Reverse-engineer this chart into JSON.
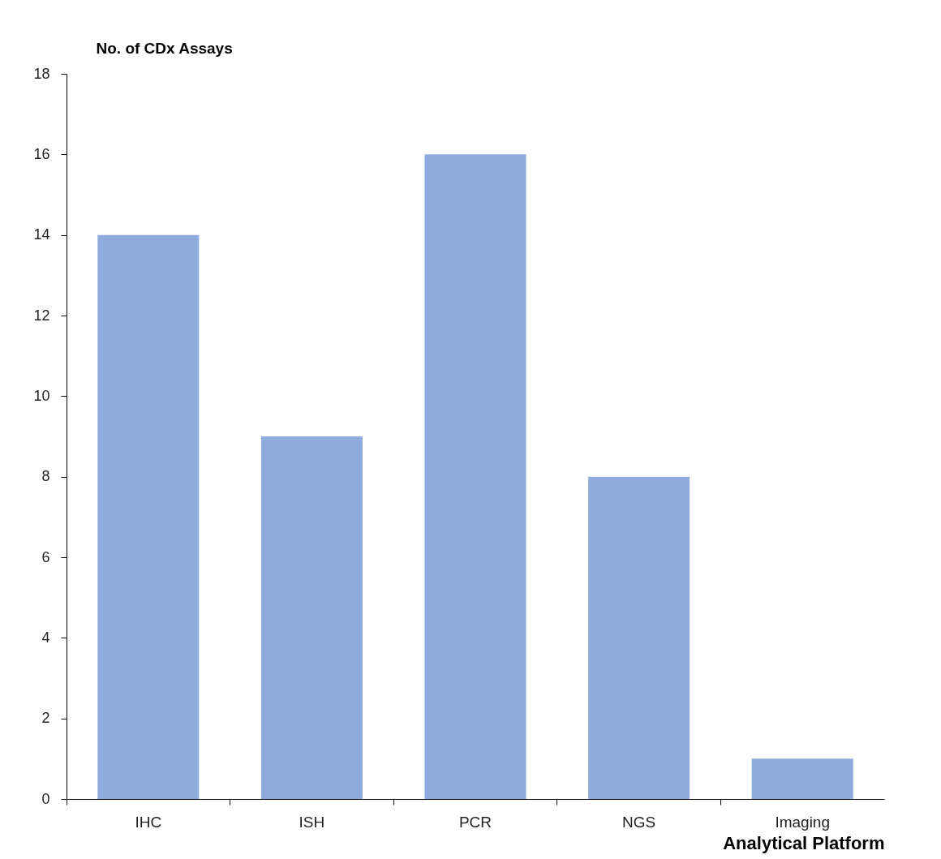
{
  "chart_data": {
    "type": "bar",
    "categories": [
      "IHC",
      "ISH",
      "PCR",
      "NGS",
      "Imaging"
    ],
    "values": [
      14,
      9,
      16,
      8,
      1
    ],
    "color": "#8faadc",
    "ylabel": "No. of CDx Assays",
    "xlabel": "Analytical Platform",
    "ylim": [
      0,
      18
    ],
    "yticks": [
      0,
      2,
      4,
      6,
      8,
      10,
      12,
      14,
      16,
      18
    ],
    "grid": false
  }
}
